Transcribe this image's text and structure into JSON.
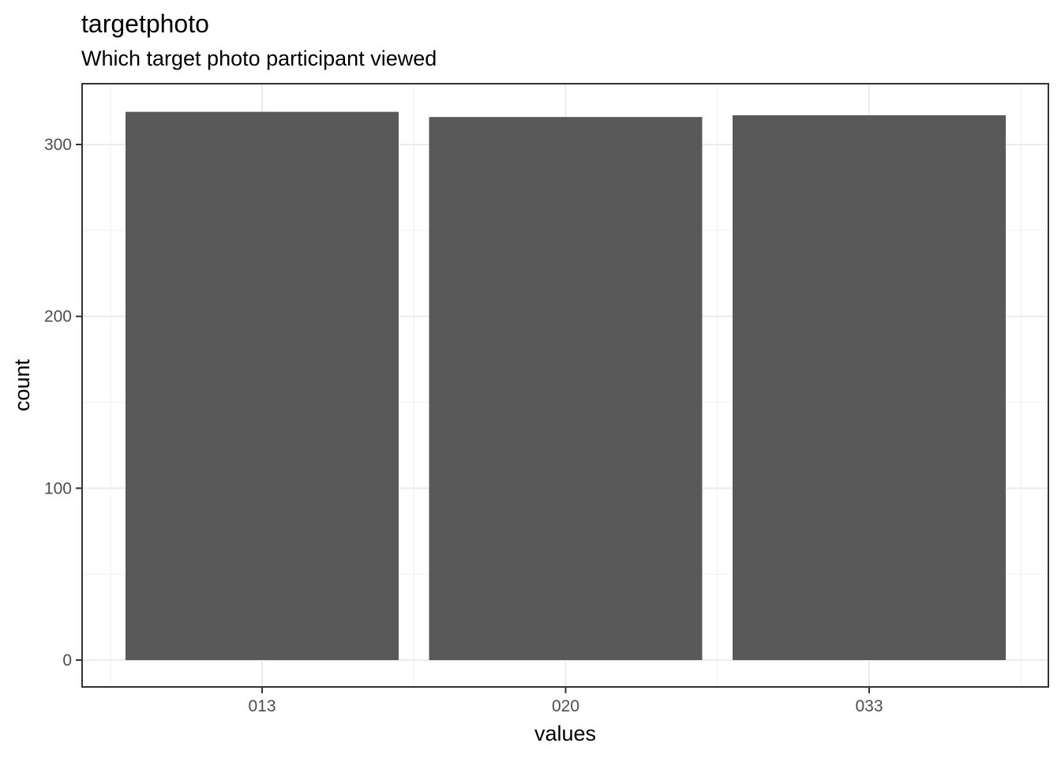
{
  "chart_data": {
    "type": "bar",
    "title": "targetphoto",
    "subtitle": "Which target photo participant viewed",
    "xlabel": "values",
    "ylabel": "count",
    "categories": [
      "013",
      "020",
      "033"
    ],
    "values": [
      319,
      316,
      317
    ],
    "ylim": [
      0,
      336
    ],
    "yticks": [
      0,
      100,
      200,
      300
    ],
    "bar_color": "#595959",
    "grid": true,
    "legend": "none"
  }
}
